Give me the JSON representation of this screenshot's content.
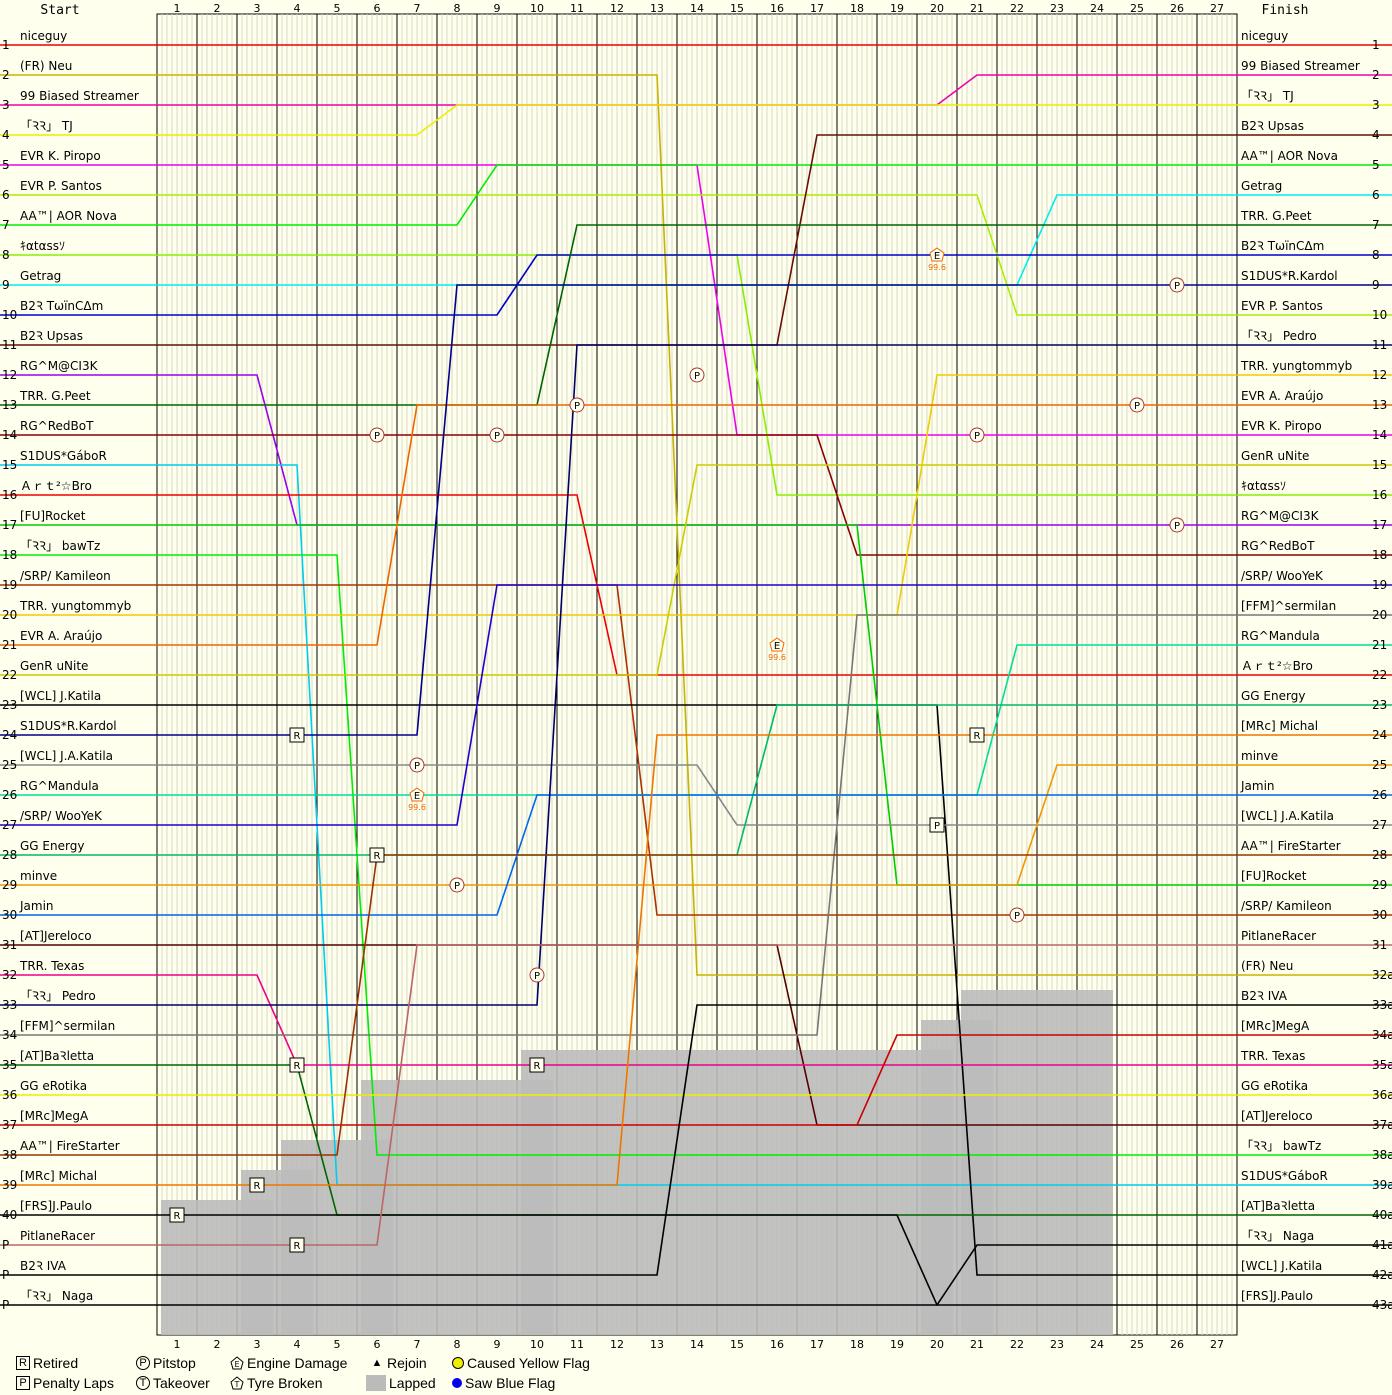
{
  "header": {
    "start": "Start",
    "finish": "Finish"
  },
  "laps": [
    "1",
    "2",
    "3",
    "4",
    "5",
    "6",
    "7",
    "8",
    "9",
    "10",
    "11",
    "12",
    "13",
    "14",
    "15",
    "16",
    "17",
    "18",
    "19",
    "20",
    "21",
    "22",
    "23",
    "24",
    "25",
    "26",
    "27"
  ],
  "start_positions": [
    "1",
    "2",
    "3",
    "4",
    "5",
    "6",
    "7",
    "8",
    "9",
    "10",
    "11",
    "12",
    "13",
    "14",
    "15",
    "16",
    "17",
    "18",
    "19",
    "20",
    "21",
    "22",
    "23",
    "24",
    "25",
    "26",
    "27",
    "28",
    "29",
    "30",
    "31",
    "32",
    "33",
    "34",
    "35",
    "36",
    "37",
    "38",
    "39",
    "40",
    "P",
    "P",
    "P"
  ],
  "finish_positions": [
    "1",
    "2",
    "3",
    "4",
    "5",
    "6",
    "7",
    "8",
    "9",
    "10",
    "11",
    "12",
    "13",
    "14",
    "15",
    "16",
    "17",
    "18",
    "19",
    "20",
    "21",
    "22",
    "23",
    "24",
    "25",
    "26",
    "27",
    "28",
    "29",
    "30",
    "31",
    "32a",
    "33a",
    "34a",
    "35a",
    "36a",
    "37a",
    "38a",
    "39a",
    "40a",
    "41a",
    "42a",
    "43a"
  ],
  "chart_data": {
    "type": "line",
    "title": "",
    "xlabel": "",
    "ylabel": "",
    "start_grid": [
      {
        "name": "niceguy",
        "color": "#ee0000"
      },
      {
        "name": "(FR) Neu",
        "color": "#c8b400"
      },
      {
        "name": "99 Biased Streamer",
        "color": "#ee00aa"
      },
      {
        "name": "「ꝚꝚ」 TJ",
        "color": "#eeee00"
      },
      {
        "name": "EVR K. Piropo",
        "color": "#ee00ee"
      },
      {
        "name": "EVR P. Santos",
        "color": "#aaee00"
      },
      {
        "name": "AA™| AOR Nova",
        "color": "#00ee00"
      },
      {
        "name": "ｷαtαssｿ",
        "color": "#88ee00"
      },
      {
        "name": "Getrag",
        "color": "#00eeee"
      },
      {
        "name": "B2Ꝛ TωïnCΔm",
        "color": "#0000cc"
      },
      {
        "name": "B2Ꝛ Upsas",
        "color": "#661100"
      },
      {
        "name": "RG^M@CI3K",
        "color": "#9900ee"
      },
      {
        "name": "TRR. G.Peet",
        "color": "#006600"
      },
      {
        "name": "RG^RedBoT",
        "color": "#880000"
      },
      {
        "name": "S1DUS*GáboR",
        "color": "#00ccee"
      },
      {
        "name": "Ａｒｔ²☆Bro",
        "color": "#ee0000"
      },
      {
        "name": "[FU]Rocket",
        "color": "#00cc00"
      },
      {
        "name": "「ꝚꝚ」 bawTz",
        "color": "#00ee00"
      },
      {
        "name": "/SRP/ Kamileon",
        "color": "#aa3300"
      },
      {
        "name": "TRR. yungtommyb",
        "color": "#eecc00"
      },
      {
        "name": "EVR A. Araújo",
        "color": "#ee6600"
      },
      {
        "name": "GenR uNite",
        "color": "#cccc00"
      },
      {
        "name": "[WCL] J.Katila",
        "color": "#000000"
      },
      {
        "name": "S1DUS*R.Kardol",
        "color": "#000088"
      },
      {
        "name": "[WCL] J.A.Katila",
        "color": "#888888"
      },
      {
        "name": "RG^Mandula",
        "color": "#00dd99"
      },
      {
        "name": "/SRP/ WooYeK",
        "color": "#2200cc"
      },
      {
        "name": "GG Energy",
        "color": "#00bb66"
      },
      {
        "name": "minve",
        "color": "#ee9900"
      },
      {
        "name": "Jamin",
        "color": "#0066ee"
      },
      {
        "name": "[AT]Jereloco",
        "color": "#550000"
      },
      {
        "name": "TRR. Texas",
        "color": "#ee0088"
      },
      {
        "name": "「ꝚꝚ」 Pedro",
        "color": "#000066"
      },
      {
        "name": "[FFM]^sermilan",
        "color": "#777777"
      },
      {
        "name": "[AT]BaꝚletta",
        "color": "#006600"
      },
      {
        "name": "GG eRotika",
        "color": "#eeee00"
      },
      {
        "name": "[MRc]MegA",
        "color": "#cc0000"
      },
      {
        "name": "AA™| FireStarter",
        "color": "#993300"
      },
      {
        "name": "[MRc] Michal",
        "color": "#ee7700"
      },
      {
        "name": "[FRS]J.Paulo",
        "color": "#000000"
      },
      {
        "name": "PitlaneRacer",
        "color": "#bb6666"
      },
      {
        "name": "B2Ꝛ IVA",
        "color": "#000000"
      },
      {
        "name": "「ꝚꝚ」 Naga",
        "color": "#000000"
      }
    ],
    "finish_order": [
      "niceguy",
      "99 Biased Streamer",
      "「ꝚꝚ」 TJ",
      "B2Ꝛ Upsas",
      "AA™| AOR Nova",
      "Getrag",
      "TRR. G.Peet",
      "B2Ꝛ TωïnCΔm",
      "S1DUS*R.Kardol",
      "EVR P. Santos",
      "「ꝚꝚ」 Pedro",
      "TRR. yungtommyb",
      "EVR A. Araújo",
      "EVR K. Piropo",
      "GenR uNite",
      "ｷαtαssｿ",
      "RG^M@CI3K",
      "RG^RedBoT",
      "/SRP/ WooYeK",
      "[FFM]^sermilan",
      "RG^Mandula",
      "Ａｒｔ²☆Bro",
      "GG Energy",
      "[MRc] Michal",
      "minve",
      "Jamin",
      "[WCL] J.A.Katila",
      "AA™| FireStarter",
      "[FU]Rocket",
      "/SRP/ Kamileon",
      "PitlaneRacer",
      "(FR) Neu",
      "B2Ꝛ IVA",
      "[MRc]MegA",
      "TRR. Texas",
      "GG eRotika",
      "[AT]Jereloco",
      "「ꝚꝚ」 bawTz",
      "S1DUS*GáboR",
      "[AT]BaꝚletta",
      "「ꝚꝚ」 Naga",
      "[WCL] J.Katila",
      "[FRS]J.Paulo"
    ],
    "lapped_laps_down": [
      {
        "from_lap": 1,
        "to_lap": 3,
        "lapped_from_position": 40
      },
      {
        "from_lap": 3,
        "to_lap": 4,
        "lapped_from_position": 39
      },
      {
        "from_lap": 4,
        "to_lap": 6,
        "lapped_from_position": 38
      },
      {
        "from_lap": 6,
        "to_lap": 10,
        "lapped_from_position": 36
      },
      {
        "from_lap": 10,
        "to_lap": 20,
        "lapped_from_position": 35
      },
      {
        "from_lap": 20,
        "to_lap": 21,
        "lapped_from_position": 34
      },
      {
        "from_lap": 21,
        "to_lap": 24,
        "lapped_from_position": 33
      }
    ],
    "events": [
      {
        "type": "Pitstop",
        "lap": 6,
        "position": 14
      },
      {
        "type": "Pitstop",
        "lap": 9,
        "position": 14
      },
      {
        "type": "Pitstop",
        "lap": 11,
        "position": 13
      },
      {
        "type": "Pitstop",
        "lap": 14,
        "position": 12
      },
      {
        "type": "Pitstop",
        "lap": 21,
        "position": 14
      },
      {
        "type": "Pitstop",
        "lap": 22,
        "position": 30
      },
      {
        "type": "Pitstop",
        "lap": 8,
        "position": 29
      },
      {
        "type": "Pitstop",
        "lap": 7,
        "position": 25
      },
      {
        "type": "Pitstop",
        "lap": 10,
        "position": 32
      },
      {
        "type": "Pitstop",
        "lap": 26,
        "position": 9
      },
      {
        "type": "Pitstop",
        "lap": 26,
        "position": 17
      },
      {
        "type": "Pitstop",
        "lap": 25,
        "position": 13
      },
      {
        "type": "Retired",
        "lap": 1,
        "position": 40
      },
      {
        "type": "Retired",
        "lap": 3,
        "position": 39
      },
      {
        "type": "Retired",
        "lap": 4,
        "position": 24
      },
      {
        "type": "Retired",
        "lap": 6,
        "position": 28
      },
      {
        "type": "Retired",
        "lap": 4,
        "position": 35
      },
      {
        "type": "Retired",
        "lap": 4,
        "position": 41
      },
      {
        "type": "Retired",
        "lap": 10,
        "position": 35
      },
      {
        "type": "Retired",
        "lap": 21,
        "position": 24
      },
      {
        "type": "Engine Damage",
        "lap": 20,
        "position": 8,
        "label": "99.6"
      },
      {
        "type": "Engine Damage",
        "lap": 16,
        "position": 21,
        "label": "99.6"
      },
      {
        "type": "Engine Damage",
        "lap": 7,
        "position": 26,
        "label": "99.6"
      },
      {
        "type": "Penalty Laps",
        "lap": 20,
        "position": 27
      }
    ]
  },
  "legend": {
    "retired": {
      "symbol": "R",
      "label": "Retired"
    },
    "penalty": {
      "symbol": "P",
      "label": "Penalty Laps"
    },
    "pitstop": {
      "symbol": "P",
      "label": "Pitstop"
    },
    "takeover": {
      "symbol": "T",
      "label": "Takeover"
    },
    "engine": {
      "symbol": "E",
      "label": "Engine Damage"
    },
    "tyre": {
      "symbol": "T",
      "label": "Tyre Broken"
    },
    "rejoin": {
      "symbol": "▲",
      "label": "Rejoin"
    },
    "lapped": {
      "label": "Lapped"
    },
    "yellow": {
      "label": "Caused Yellow Flag",
      "color": "#eeee00"
    },
    "blue": {
      "label": "Saw Blue Flag",
      "color": "#0000ee"
    }
  }
}
